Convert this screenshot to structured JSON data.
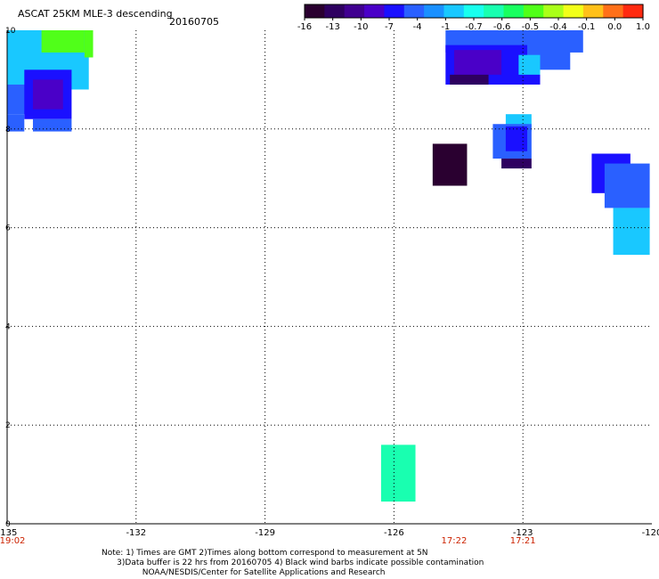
{
  "header": {
    "title": "ASCAT 25KM MLE-3 descending",
    "date": "20160705"
  },
  "colorbar": {
    "colors": [
      "#2a0030",
      "#2e0060",
      "#400090",
      "#4a00c8",
      "#1a10ff",
      "#2a60ff",
      "#1a90ff",
      "#19c8ff",
      "#19ffee",
      "#19ffb0",
      "#19ff60",
      "#50ff19",
      "#aaff19",
      "#f2ff19",
      "#ffc019",
      "#ff7019",
      "#ff2a10"
    ],
    "tick_labels": [
      "-16",
      "-13",
      "-10",
      "-7",
      "-4",
      "-1",
      "-0.7",
      "-0.6",
      "-0.5",
      "-0.4",
      "-0.1",
      "0.0",
      "1.0"
    ]
  },
  "chart_data": {
    "type": "heatmap",
    "xlim": [
      -135,
      -120
    ],
    "ylim": [
      0,
      10
    ],
    "x_ticks": [
      "-135",
      "-132",
      "-129",
      "-126",
      "-123",
      "-120"
    ],
    "y_ticks": [
      "0",
      "2",
      "4",
      "6",
      "8",
      "10"
    ],
    "grid": true,
    "time_labels": [
      {
        "x": -135,
        "label": "19:02"
      },
      {
        "x": -124.6,
        "label": "17:22"
      },
      {
        "x": -123,
        "label": "17:21"
      }
    ],
    "cells": [
      {
        "x0": -135,
        "x1": -133.1,
        "y0": 8.8,
        "y1": 10,
        "value": -1
      },
      {
        "x0": -134.2,
        "x1": -133.2,
        "y0": 9.55,
        "y1": 10,
        "value": -0.5
      },
      {
        "x0": -133.2,
        "x1": -133.0,
        "y0": 9.45,
        "y1": 10,
        "value": -0.5
      },
      {
        "x0": -135,
        "x1": -134.5,
        "y0": 8.3,
        "y1": 8.9,
        "value": -4
      },
      {
        "x0": -134.6,
        "x1": -133.5,
        "y0": 8.2,
        "y1": 9.2,
        "value": -7
      },
      {
        "x0": -134.4,
        "x1": -133.7,
        "y0": 8.4,
        "y1": 9.0,
        "value": -10
      },
      {
        "x0": -135,
        "x1": -134.6,
        "y0": 7.95,
        "y1": 8.3,
        "value": -4
      },
      {
        "x0": -134.4,
        "x1": -133.5,
        "y0": 7.95,
        "y1": 8.2,
        "value": -4
      },
      {
        "x0": -124.8,
        "x1": -121.6,
        "y0": 9.55,
        "y1": 10,
        "value": -4
      },
      {
        "x0": -124.8,
        "x1": -122.6,
        "y0": 8.9,
        "y1": 9.7,
        "value": -7
      },
      {
        "x0": -124.6,
        "x1": -123.5,
        "y0": 9.1,
        "y1": 9.6,
        "value": -10
      },
      {
        "x0": -124.7,
        "x1": -123.8,
        "y0": 8.9,
        "y1": 9.1,
        "value": -13
      },
      {
        "x0": -122.9,
        "x1": -121.9,
        "y0": 9.2,
        "y1": 10,
        "value": -4
      },
      {
        "x0": -123.1,
        "x1": -122.6,
        "y0": 9.1,
        "y1": 9.5,
        "value": -1
      },
      {
        "x0": -123.4,
        "x1": -122.8,
        "y0": 7.95,
        "y1": 8.3,
        "value": -1
      },
      {
        "x0": -123.7,
        "x1": -122.8,
        "y0": 7.4,
        "y1": 8.1,
        "value": -4
      },
      {
        "x0": -123.4,
        "x1": -122.9,
        "y0": 7.55,
        "y1": 8.05,
        "value": -7
      },
      {
        "x0": -123.5,
        "x1": -122.8,
        "y0": 7.2,
        "y1": 7.4,
        "value": -13
      },
      {
        "x0": -125.1,
        "x1": -124.3,
        "y0": 6.85,
        "y1": 7.7,
        "value": -16
      },
      {
        "x0": -121.4,
        "x1": -120.5,
        "y0": 6.7,
        "y1": 7.5,
        "value": -7
      },
      {
        "x0": -121.1,
        "x1": -120.05,
        "y0": 6.4,
        "y1": 7.3,
        "value": -4
      },
      {
        "x0": -120.9,
        "x1": -120.05,
        "y0": 5.45,
        "y1": 6.4,
        "value": -1
      },
      {
        "x0": -126.3,
        "x1": -125.5,
        "y0": 0.45,
        "y1": 1.6,
        "value": -0.6
      }
    ]
  },
  "footer": {
    "notes": [
      "Note: 1) Times are GMT 2)Times along bottom correspond to measurement at 5N",
      "      3)Data buffer is 22 hrs from 20160705 4) Black wind barbs indicate possible contamination",
      "                NOAA/NESDIS/Center for Satellite Applications and Research"
    ]
  }
}
